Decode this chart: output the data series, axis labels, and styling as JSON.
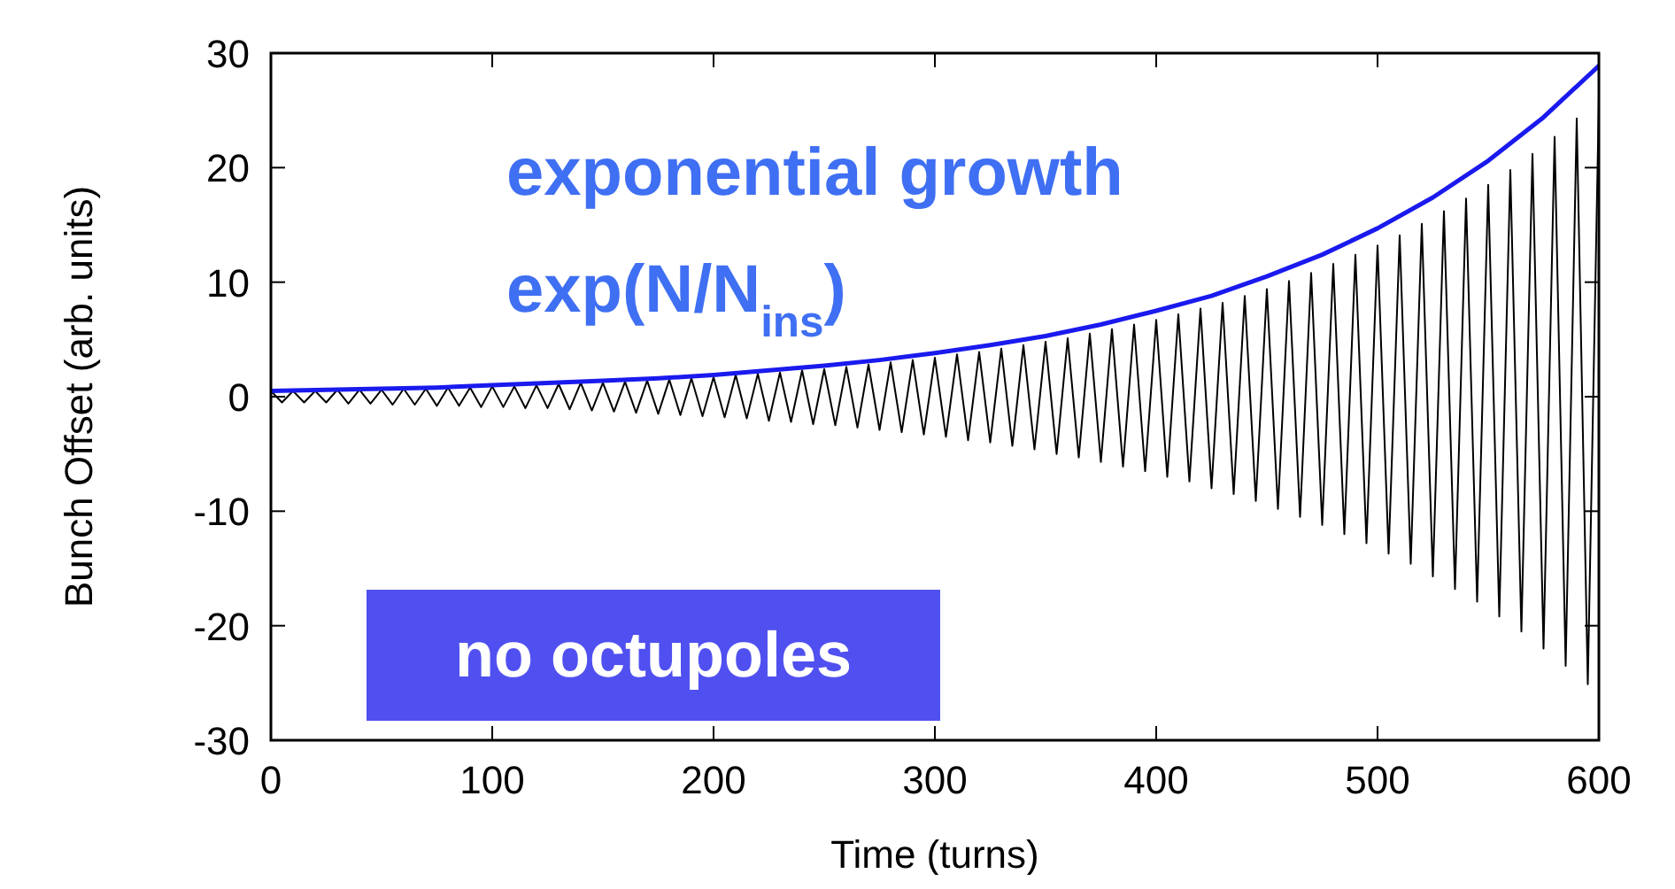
{
  "chart_data": {
    "type": "line",
    "xlabel": "Time (turns)",
    "ylabel": "Bunch Offset (arb. units)",
    "xlim": [
      0,
      600
    ],
    "ylim": [
      -30,
      30
    ],
    "xticks": [
      0,
      100,
      200,
      300,
      400,
      500,
      600
    ],
    "yticks": [
      -30,
      -20,
      -10,
      0,
      10,
      20,
      30
    ],
    "grid": false,
    "marker": "none",
    "line_style": "solid",
    "annotations": [
      "exponential growth",
      "exp(N/N$_{ins}$)",
      "no octupoles"
    ],
    "series": [
      {
        "color": "#000000",
        "x": [
          0,
          5,
          10,
          15,
          20,
          25,
          30,
          35,
          40,
          45,
          50,
          55,
          60,
          65,
          70,
          75,
          80,
          85,
          90,
          95,
          100,
          105,
          110,
          115,
          120,
          125,
          130,
          135,
          140,
          145,
          150,
          155,
          160,
          165,
          170,
          175,
          180,
          185,
          190,
          195,
          200,
          205,
          210,
          215,
          220,
          225,
          230,
          235,
          240,
          245,
          250,
          255,
          260,
          265,
          270,
          275,
          280,
          285,
          290,
          295,
          300,
          305,
          310,
          315,
          320,
          325,
          330,
          335,
          340,
          345,
          350,
          355,
          360,
          365,
          370,
          375,
          380,
          385,
          390,
          395,
          400,
          405,
          410,
          415,
          420,
          425,
          430,
          435,
          440,
          445,
          450,
          455,
          460,
          465,
          470,
          475,
          480,
          485,
          490,
          495,
          500,
          505,
          510,
          515,
          520,
          525,
          530,
          535,
          540,
          545,
          550,
          555,
          560,
          565,
          570,
          575,
          580,
          585,
          590,
          595,
          600
        ],
        "values": [
          0.5,
          -0.5,
          0.5,
          -0.5,
          0.5,
          -0.5,
          0.6,
          -0.6,
          0.6,
          -0.6,
          0.6,
          -0.7,
          0.7,
          -0.7,
          0.7,
          -0.8,
          0.8,
          -0.8,
          0.8,
          -0.9,
          0.9,
          -0.9,
          0.9,
          -1.0,
          1.0,
          -1.0,
          1.1,
          -1.1,
          1.2,
          -1.2,
          1.2,
          -1.3,
          1.3,
          -1.4,
          1.4,
          -1.5,
          1.5,
          -1.6,
          1.6,
          -1.7,
          1.7,
          -1.8,
          1.9,
          -1.9,
          2.0,
          -2.1,
          2.1,
          -2.2,
          2.3,
          -2.4,
          2.4,
          -2.5,
          2.6,
          -2.7,
          2.8,
          -2.9,
          3.0,
          -3.1,
          3.2,
          -3.3,
          3.4,
          -3.5,
          3.7,
          -3.8,
          3.9,
          -4.0,
          4.2,
          -4.3,
          4.5,
          -4.6,
          4.8,
          -5.0,
          5.1,
          -5.3,
          5.5,
          -5.7,
          5.9,
          -6.1,
          6.3,
          -6.5,
          6.7,
          -7.0,
          7.2,
          -7.4,
          7.7,
          -8.0,
          8.2,
          -8.5,
          8.8,
          -9.1,
          9.4,
          -9.8,
          10.1,
          -10.5,
          10.8,
          -11.2,
          11.6,
          -12.0,
          12.4,
          -12.8,
          13.2,
          -13.7,
          14.1,
          -14.6,
          15.1,
          -15.7,
          16.2,
          -16.8,
          17.3,
          -17.9,
          18.5,
          -19.2,
          19.8,
          -20.5,
          21.2,
          -22.0,
          22.7,
          -23.5,
          24.3,
          -25.1,
          26.0
        ]
      },
      {
        "color": "#1a1aee",
        "x": [
          0,
          25,
          50,
          75,
          100,
          125,
          150,
          175,
          200,
          225,
          250,
          275,
          300,
          325,
          350,
          375,
          400,
          425,
          450,
          475,
          500,
          525,
          550,
          575,
          600
        ],
        "values": [
          0.5,
          0.6,
          0.7,
          0.8,
          1.0,
          1.2,
          1.4,
          1.6,
          1.9,
          2.3,
          2.7,
          3.2,
          3.8,
          4.5,
          5.3,
          6.3,
          7.5,
          8.8,
          10.5,
          12.4,
          14.7,
          17.4,
          20.6,
          24.4,
          28.9
        ]
      }
    ]
  }
}
